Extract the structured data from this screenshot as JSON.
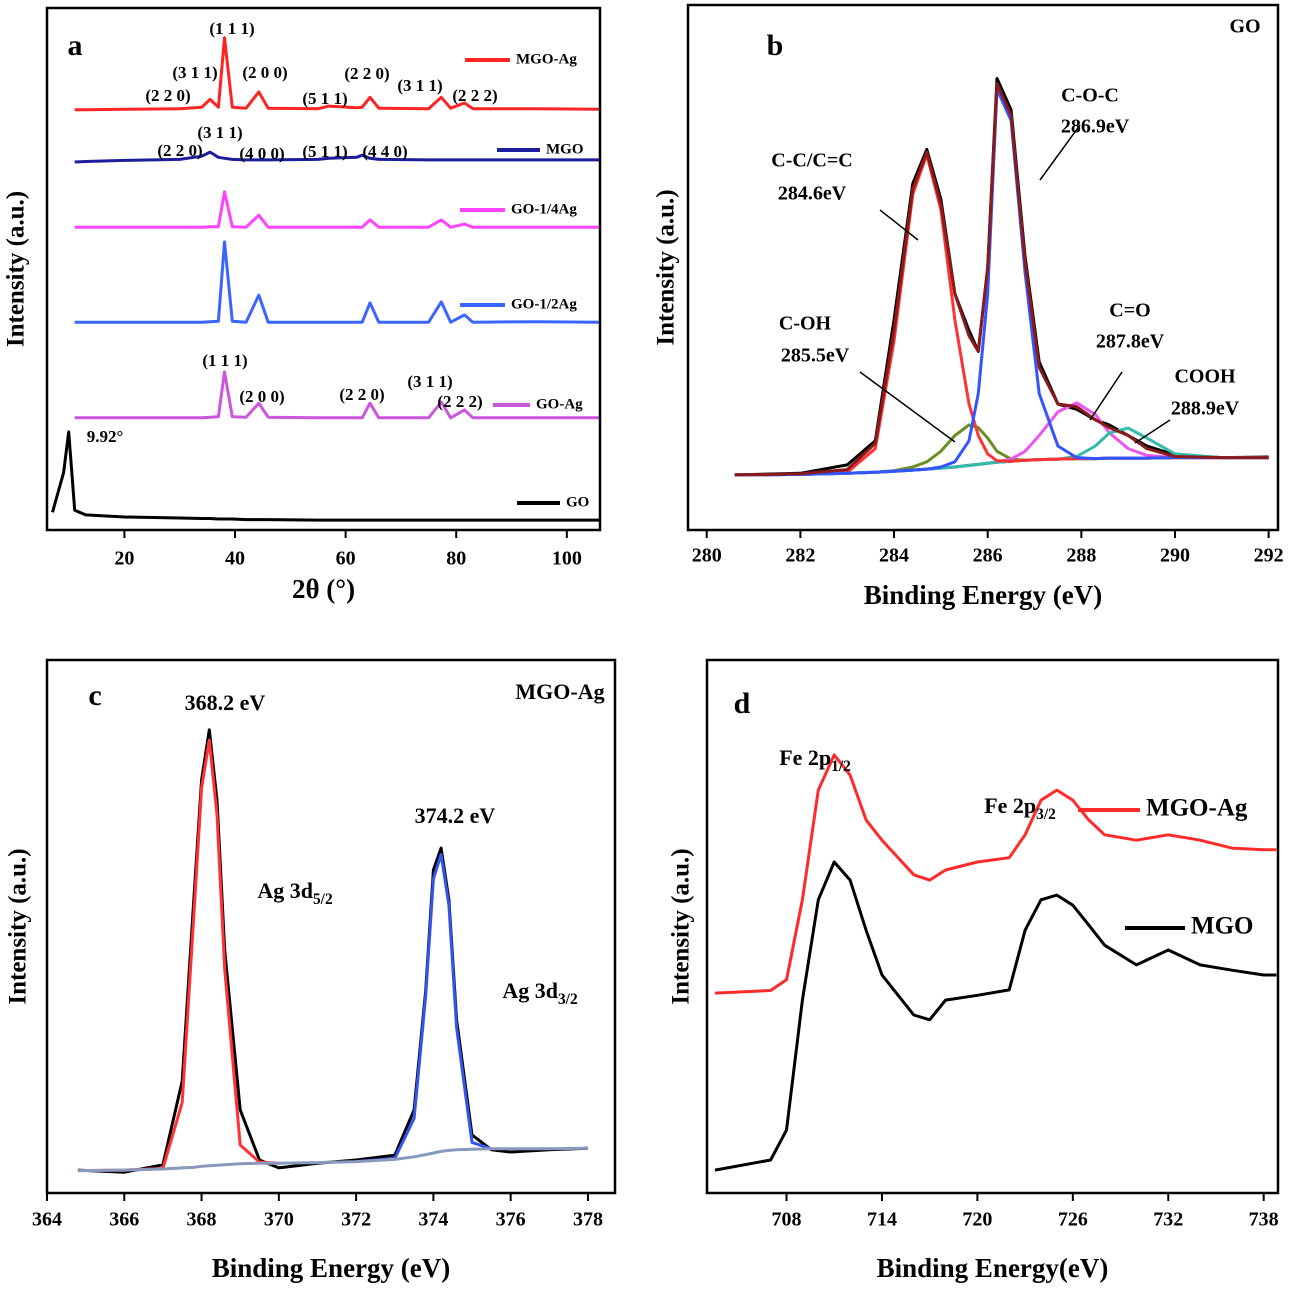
{
  "chart_data": [
    {
      "type": "line",
      "panel": "a",
      "x_label": "2θ (°)",
      "y_label": "Intensity (a.u.)",
      "xlim": [
        6,
        106
      ],
      "ylim": [
        0,
        100
      ],
      "xticks": [
        20,
        40,
        60,
        80,
        100
      ],
      "legend": "inline",
      "x": [
        7,
        9,
        9.92,
        11,
        13,
        20,
        30,
        34,
        35.5,
        37,
        38.1,
        39.5,
        42,
        44.3,
        46,
        55,
        57,
        62,
        63,
        64.4,
        66,
        75,
        77.3,
        79,
        81.5,
        83,
        95,
        106
      ],
      "series": [
        {
          "name": "MGO-Ag",
          "color": "#ff2424",
          "values": [
            null,
            null,
            null,
            80.5,
            80.5,
            80.6,
            80.7,
            81,
            82.5,
            81,
            94.3,
            81,
            80.8,
            83.9,
            80.8,
            80.7,
            81.2,
            80.9,
            81,
            82.9,
            80.8,
            80.7,
            82.9,
            80.8,
            81.8,
            80.7,
            80.7,
            80.6
          ]
        },
        {
          "name": "MGO",
          "color": "#1c1c9c",
          "values": [
            null,
            null,
            null,
            70.5,
            70.6,
            70.8,
            71,
            71.6,
            72.4,
            71.4,
            71.2,
            71,
            70.9,
            70.9,
            70.9,
            71,
            71.2,
            71.4,
            71.8,
            71.2,
            71,
            70.9,
            70.9,
            70.9,
            70.9,
            70.9,
            70.9,
            70.9
          ]
        },
        {
          "name": "GO-1/4Ag",
          "color": "#ff44ff",
          "values": [
            null,
            null,
            null,
            58,
            58,
            58,
            58,
            58,
            58.1,
            58.1,
            64.8,
            58.1,
            58,
            60.3,
            58,
            58,
            58,
            58,
            58,
            59.4,
            58,
            58,
            59.4,
            58,
            58.6,
            58,
            58,
            58
          ]
        },
        {
          "name": "GO-1/2Ag",
          "color": "#3a66ff",
          "values": [
            null,
            null,
            null,
            39.8,
            39.8,
            39.8,
            39.8,
            39.8,
            39.9,
            40,
            55.2,
            40,
            39.8,
            45,
            39.8,
            39.8,
            39.8,
            39.8,
            39.8,
            43.5,
            39.8,
            39.8,
            43.7,
            39.8,
            41.2,
            39.8,
            39.9,
            39.8
          ]
        },
        {
          "name": "GO-Ag",
          "color": "#cc55dd",
          "values": [
            null,
            null,
            null,
            21.5,
            21.5,
            21.5,
            21.5,
            21.5,
            21.6,
            21.7,
            30.3,
            21.7,
            21.6,
            24.3,
            21.6,
            21.5,
            21.5,
            21.5,
            21.5,
            24.3,
            21.5,
            21.5,
            24.5,
            21.5,
            23,
            21.5,
            21.5,
            21.5
          ]
        },
        {
          "name": "GO",
          "color": "#000000",
          "values": [
            3.4,
            11,
            18.8,
            3.8,
            2.9,
            2.5,
            2.3,
            2.2,
            2.2,
            2.1,
            2.1,
            2.1,
            2.0,
            2.0,
            2.0,
            1.9,
            1.9,
            1.9,
            1.9,
            1.9,
            1.9,
            1.9,
            1.9,
            1.9,
            1.9,
            1.9,
            1.9,
            1.9
          ]
        }
      ],
      "annotations": [
        "(1 1 1)",
        "(3 1 1)",
        "(2 0 0)",
        "(2 2 0)",
        "(5 1 1)",
        "(2 2 0)",
        "(3 1 1)",
        "(2 2 2)",
        "(2 2 0)",
        "(3 1 1)",
        "(4 0 0)",
        "(5 1 1)",
        "(4 4 0)",
        "(1 1 1)",
        "(2 0 0)",
        "(2 2 0)",
        "(3 1 1)",
        "(2 2 2)",
        "9.92°"
      ]
    },
    {
      "type": "line",
      "panel": "b",
      "x_label": "Binding Energy (eV)",
      "y_label": "Intensity (a.u.)",
      "xlim": [
        279.6,
        292.2
      ],
      "ylim": [
        0,
        100
      ],
      "xticks": [
        280,
        282,
        284,
        286,
        288,
        290,
        292
      ],
      "x": [
        280.6,
        282,
        283,
        283.6,
        284.0,
        284.4,
        284.7,
        285.0,
        285.3,
        285.6,
        285.8,
        286.0,
        286.2,
        286.5,
        286.8,
        287.1,
        287.5,
        287.9,
        288.3,
        288.6,
        289.0,
        289.4,
        290,
        291,
        292
      ],
      "series": [
        {
          "color": "#000000",
          "values": [
            10.5,
            10.8,
            12.4,
            17,
            40,
            66,
            72.5,
            63,
            45,
            38,
            34,
            50,
            86,
            80,
            52,
            32,
            24,
            23,
            21,
            20,
            18,
            16,
            14.3,
            13.8,
            13.9
          ]
        },
        {
          "color": "#2233aa",
          "values": [
            10.5,
            10.6,
            10.8,
            11.0,
            11.2,
            11.4,
            11.6,
            11.8,
            12.0,
            12.3,
            12.5,
            12.7,
            12.9,
            13.1,
            13.3,
            13.4,
            13.5,
            13.6,
            13.6,
            13.7,
            13.7,
            13.7,
            13.8,
            13.8,
            13.8
          ]
        },
        {
          "color": "#6b8e23",
          "values": [
            10.5,
            10.6,
            10.8,
            11,
            11.3,
            12,
            13,
            15,
            18,
            20,
            19.5,
            17.5,
            15,
            13.5,
            13.3,
            13.4,
            13.5,
            13.6,
            13.6,
            13.7,
            13.7,
            13.7,
            13.8,
            13.8,
            13.8
          ]
        },
        {
          "color": "#ee55ee",
          "values": [
            10.5,
            10.6,
            10.8,
            11,
            11.2,
            11.4,
            11.6,
            11.8,
            12,
            12.3,
            12.5,
            12.7,
            13,
            13.5,
            15,
            18,
            22.5,
            24.2,
            22,
            18.5,
            15.5,
            14.2,
            13.8,
            13.8,
            13.8
          ]
        },
        {
          "color": "#33bbaa",
          "values": [
            10.5,
            10.6,
            10.8,
            11.0,
            11.2,
            11.4,
            11.6,
            11.8,
            12.0,
            12.3,
            12.5,
            12.7,
            12.9,
            13.1,
            13.3,
            13.4,
            13.5,
            14,
            16,
            18.5,
            19.4,
            17.5,
            14.5,
            13.8,
            13.8
          ]
        },
        {
          "color": "#ff3333",
          "values": [
            10.5,
            10.6,
            11.0,
            15.5,
            36,
            64,
            71.5,
            61,
            40,
            24,
            18,
            14.5,
            13.2,
            13.1,
            13.3,
            13.4,
            13.5,
            13.6,
            13.6,
            13.7,
            13.7,
            13.7,
            13.8,
            13.8,
            13.8
          ]
        },
        {
          "color": "#3355ff",
          "values": [
            10.5,
            10.6,
            10.8,
            11,
            11.2,
            11.4,
            11.6,
            12,
            13,
            17,
            26,
            45,
            84,
            78,
            49,
            26,
            16,
            13.8,
            13.6,
            13.7,
            13.7,
            13.7,
            13.8,
            13.8,
            13.8
          ]
        },
        {
          "color": "#8b1a1a",
          "values": [
            10.5,
            10.7,
            11.5,
            16.5,
            38,
            65,
            72,
            62,
            45,
            37,
            34,
            50,
            85,
            79,
            51,
            31,
            24,
            23.5,
            21,
            19.5,
            18,
            15.5,
            14,
            13.8,
            13.8
          ]
        }
      ],
      "annotations": [
        "GO",
        "C-C/C=C",
        "284.6eV",
        "C-O-C",
        "286.9eV",
        "C-OH",
        "285.5eV",
        "C=O",
        "287.8eV",
        "COOH",
        "288.9eV"
      ]
    },
    {
      "type": "line",
      "panel": "c",
      "x_label": "Binding Energy (eV)",
      "y_label": "Intensity (a.u.)",
      "xlim": [
        364,
        378.7
      ],
      "ylim": [
        0,
        100
      ],
      "xticks": [
        364,
        366,
        368,
        370,
        372,
        374,
        376,
        378
      ],
      "x": [
        364.8,
        366,
        367,
        367.5,
        367.8,
        368.0,
        368.2,
        368.4,
        368.6,
        369.0,
        369.5,
        370,
        371,
        372,
        373,
        373.5,
        373.8,
        374.0,
        374.2,
        374.4,
        374.6,
        375,
        375.5,
        376,
        377,
        378
      ],
      "series": [
        {
          "color": "#000000",
          "values": [
            4.3,
            3.9,
            5.3,
            21,
            55,
            77.5,
            86.9,
            73.7,
            45.6,
            15.6,
            6.2,
            4.7,
            5.6,
            6.2,
            7.1,
            15.6,
            38,
            60.6,
            64.7,
            55,
            32.5,
            10.9,
            8.1,
            7.7,
            8.1,
            8.4
          ]
        },
        {
          "color": "#ff3333",
          "values": [
            4.2,
            4.3,
            4.6,
            17,
            52,
            76,
            85,
            71,
            42,
            9,
            5.8,
            5.6,
            null,
            null,
            null,
            null,
            null,
            null,
            null,
            null,
            null,
            null,
            null,
            null,
            null,
            null
          ]
        },
        {
          "color": "#3355ee",
          "values": [
            null,
            null,
            null,
            null,
            null,
            null,
            null,
            null,
            null,
            null,
            null,
            null,
            null,
            5.9,
            6.5,
            14,
            37,
            59,
            63.5,
            54,
            31,
            9.5,
            8.3,
            null,
            null,
            null
          ]
        },
        {
          "color": "#8899bb",
          "values": [
            4.2,
            4.3,
            4.5,
            4.7,
            4.8,
            5.0,
            5.1,
            5.2,
            5.3,
            5.5,
            5.6,
            5.6,
            5.7,
            5.9,
            6.3,
            6.8,
            7.2,
            7.5,
            7.8,
            8.0,
            8.1,
            8.2,
            8.3,
            8.3,
            8.3,
            8.4
          ]
        }
      ],
      "annotations": [
        "MGO-Ag",
        "368.2 eV",
        "374.2 eV",
        {
          "text": "Ag 3d",
          "sub": "5/2"
        },
        {
          "text": "Ag 3d",
          "sub": "3/2"
        }
      ]
    },
    {
      "type": "line",
      "panel": "d",
      "x_label": "Binding Energy(eV)",
      "y_label": "Intensity (a.u.)",
      "xlim": [
        703,
        738.9
      ],
      "ylim": [
        0,
        100
      ],
      "xticks": [
        708,
        714,
        720,
        726,
        732,
        738
      ],
      "legend": "right",
      "x": [
        703.5,
        707,
        708,
        709,
        710,
        711,
        712,
        713,
        714,
        716,
        717,
        718,
        720,
        722,
        723,
        724,
        725,
        726,
        727,
        728,
        730,
        732,
        734,
        736,
        738,
        738.8
      ],
      "series": [
        {
          "name": "MGO-Ag",
          "color": "#ff2a2a",
          "values": [
            37.5,
            38,
            40,
            55,
            75.6,
            82.2,
            78.4,
            70,
            66.2,
            59.7,
            58.7,
            60.6,
            62.1,
            62.9,
            67.2,
            73.7,
            75.6,
            73.7,
            70,
            67.2,
            66.2,
            67.2,
            66.2,
            64.7,
            64.4,
            64.4
          ]
        },
        {
          "name": "MGO",
          "color": "#000000",
          "values": [
            4.3,
            6.2,
            11.8,
            36.2,
            55,
            62.1,
            58.7,
            49.3,
            40.9,
            33.4,
            32.5,
            36.2,
            37.1,
            38.1,
            49.3,
            55,
            55.9,
            54,
            50.3,
            46.5,
            42.8,
            45.6,
            42.8,
            41.8,
            40.9,
            40.9
          ]
        }
      ],
      "annotations": [
        {
          "text": "Fe 2p",
          "sub": "1/2"
        },
        {
          "text": "Fe 2p",
          "sub": "3/2"
        }
      ]
    }
  ]
}
